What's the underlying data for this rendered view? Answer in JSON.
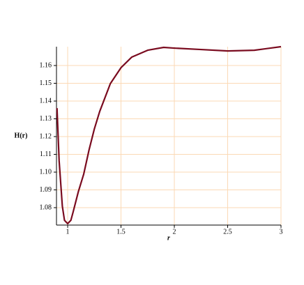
{
  "chart_data": {
    "type": "line",
    "x_label": "r",
    "y_label": "H(r)",
    "x": [
      0.9,
      0.92,
      0.95,
      0.97,
      1.0,
      1.03,
      1.05,
      1.1,
      1.15,
      1.2,
      1.25,
      1.3,
      1.4,
      1.5,
      1.6,
      1.75,
      1.9,
      2.0,
      2.25,
      2.5,
      2.75,
      3.0
    ],
    "series": [
      {
        "name": "H(r)",
        "color": "#7a0b1f",
        "values": [
          1.136,
          1.1063,
          1.0808,
          1.0729,
          1.071,
          1.0729,
          1.0773,
          1.089,
          1.0988,
          1.1124,
          1.1243,
          1.1341,
          1.1498,
          1.1588,
          1.1647,
          1.1686,
          1.1702,
          1.1698,
          1.169,
          1.1682,
          1.1686,
          1.1706
        ]
      }
    ],
    "xlim": [
      0.895,
      3.0
    ],
    "ylim": [
      1.0702,
      1.1706
    ],
    "xticks": [
      1,
      1.5,
      2,
      2.5,
      3
    ],
    "yticks": [
      1.08,
      1.09,
      {
        "value": 1.1,
        "label": "1.10"
      },
      1.11,
      1.12,
      1.13,
      1.14,
      1.15,
      1.16
    ],
    "grid": true,
    "grid_color": "#fbd9b5"
  }
}
